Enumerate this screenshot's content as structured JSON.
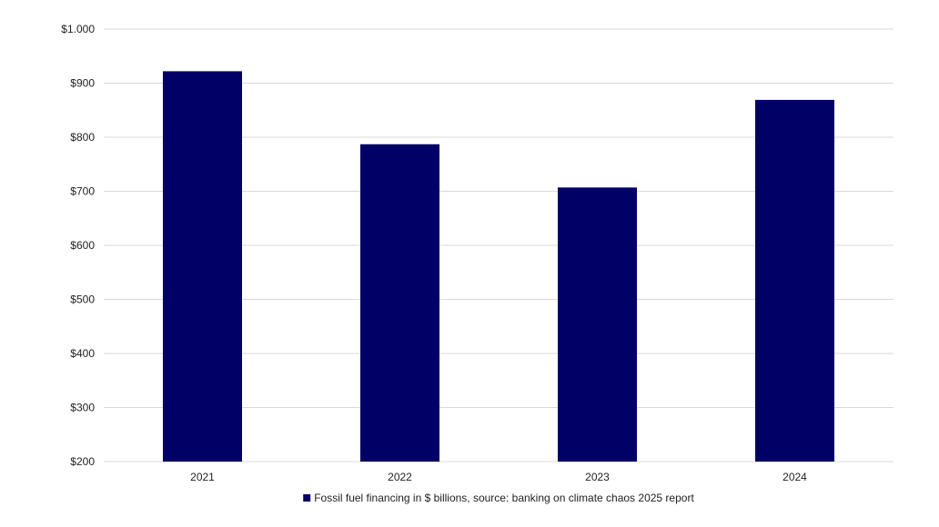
{
  "chart_data": {
    "type": "bar",
    "categories": [
      "2021",
      "2022",
      "2023",
      "2024"
    ],
    "series": [
      {
        "name": "Fossil fuel financing in $ billions, source: banking on climate chaos 2025 report",
        "values": [
          922,
          787,
          707,
          869
        ],
        "color": "#000066"
      }
    ],
    "y_ticks": [
      200,
      300,
      400,
      500,
      600,
      700,
      800,
      900,
      1000
    ],
    "y_tick_labels": [
      "$200",
      "$300",
      "$400",
      "$500",
      "$600",
      "$700",
      "$800",
      "$900",
      "$1.000"
    ],
    "ylim": [
      200,
      1000
    ],
    "grid": true,
    "gridline_color": "#d9d9d9",
    "legend_position": "bottom-center",
    "title": "",
    "xlabel": "",
    "ylabel": ""
  }
}
